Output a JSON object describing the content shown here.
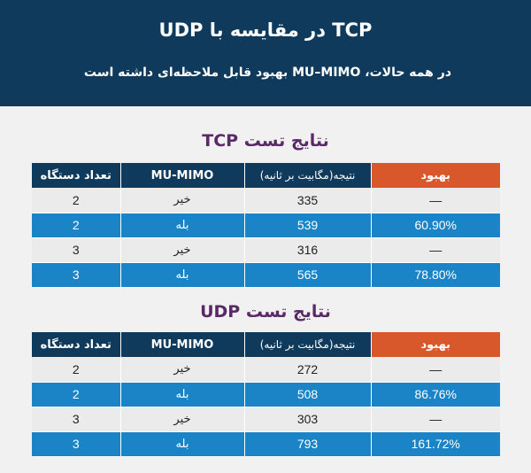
{
  "header": {
    "title": "TCP در مقایسه با UDP",
    "subtitle": "در همه حالات، MU–MIMO بهبود قابل ملاحظه‌ای داشته است"
  },
  "columns": {
    "count": "تعداد دستگاه",
    "mimo": "MU-MIMO",
    "result": "نتیجه(مگابیت بر ثانیه)",
    "improve": "بهبود"
  },
  "tcp": {
    "title": "نتایج تست TCP",
    "rows": [
      {
        "count": "2",
        "mimo": "خیر",
        "result": "335",
        "improve": "—"
      },
      {
        "count": "2",
        "mimo": "بله",
        "result": "539",
        "improve": "60.90%"
      },
      {
        "count": "3",
        "mimo": "خیر",
        "result": "316",
        "improve": "—"
      },
      {
        "count": "3",
        "mimo": "بله",
        "result": "565",
        "improve": "78.80%"
      }
    ]
  },
  "udp": {
    "title": "نتایج تست UDP",
    "rows": [
      {
        "count": "2",
        "mimo": "خیر",
        "result": "272",
        "improve": "—"
      },
      {
        "count": "2",
        "mimo": "بله",
        "result": "508",
        "improve": "86.76%"
      },
      {
        "count": "3",
        "mimo": "خیر",
        "result": "303",
        "improve": "—"
      },
      {
        "count": "3",
        "mimo": "بله",
        "result": "793",
        "improve": "161.72%"
      }
    ]
  },
  "colors": {
    "header_bg": "#0f3a5c",
    "accent_orange": "#d9582b",
    "row_blue": "#1a84c6",
    "row_light": "#ebebeb",
    "section_title": "#5a2a68"
  }
}
